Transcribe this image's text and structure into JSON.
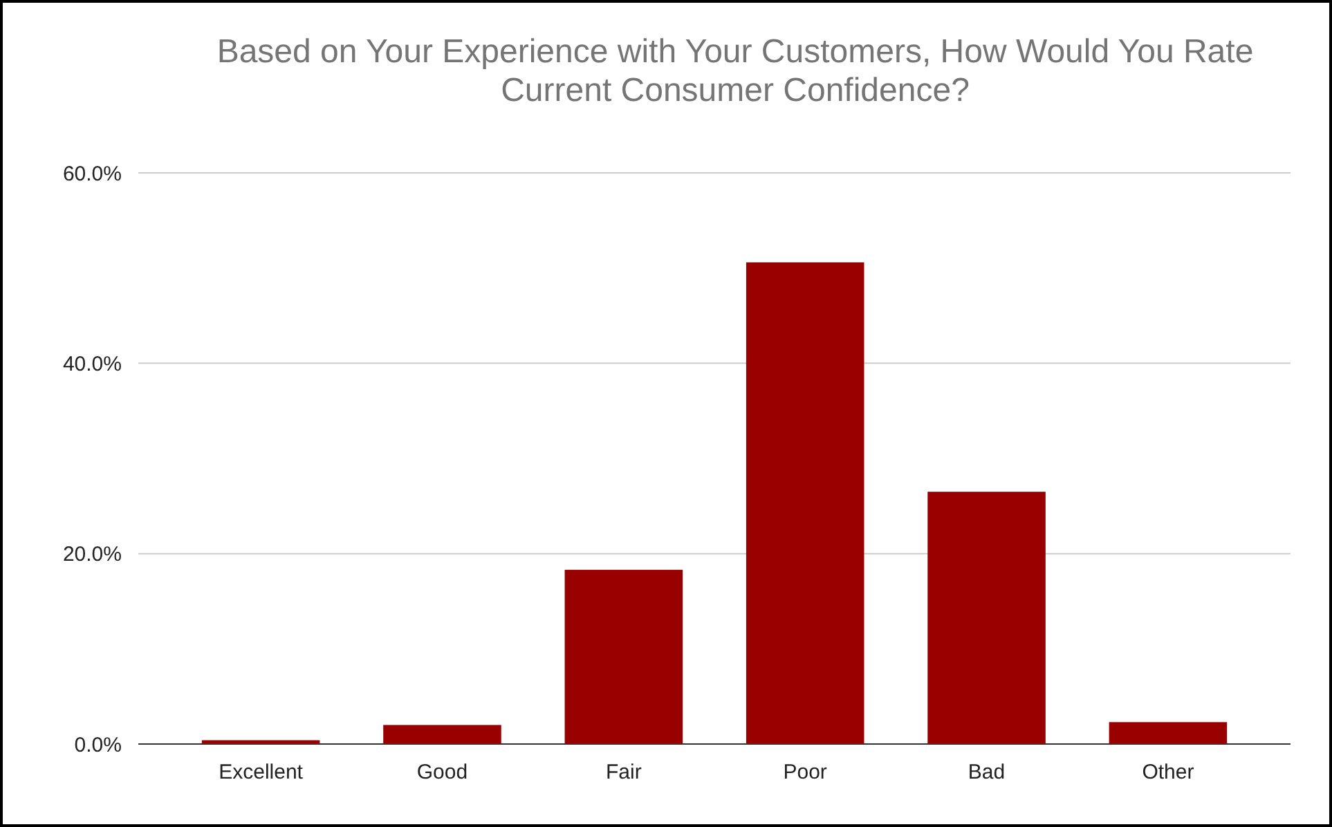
{
  "chart_data": {
    "type": "bar",
    "title": "Based on Your Experience with Your Customers, How Would You Rate Current Consumer Confidence?",
    "categories": [
      "Excellent",
      "Good",
      "Fair",
      "Poor",
      "Bad",
      "Other"
    ],
    "values": [
      0.4,
      2.0,
      18.3,
      50.6,
      26.5,
      2.3
    ],
    "color": "#990000",
    "ylim": [
      0,
      60
    ],
    "yticks": [
      {
        "value": 0,
        "label": "0.0%"
      },
      {
        "value": 20,
        "label": "20.0%"
      },
      {
        "value": 40,
        "label": "40.0%"
      },
      {
        "value": 60,
        "label": "60.0%"
      }
    ],
    "grid": true
  }
}
